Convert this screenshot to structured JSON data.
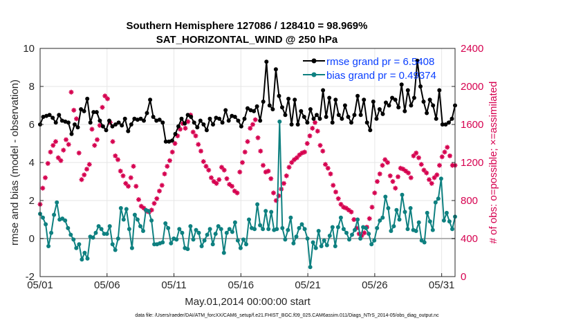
{
  "chart_data": {
    "type": "line",
    "title": "Southern Hemisphere 127086 / 128410 = 98.969%",
    "subtitle": "SAT_HORIZONTAL_WIND @ 250 hPa",
    "xlabel": "May.01,2014 00:00:00 start",
    "ylabel_left": "rmse and bias (model - observation)",
    "ylabel_right": "# of obs: o=possible; ×=assimilated",
    "x_tick_labels": [
      "05/01",
      "05/06",
      "05/11",
      "05/16",
      "05/21",
      "05/26",
      "05/31"
    ],
    "x_tick_days": [
      1,
      6,
      11,
      16,
      21,
      26,
      31
    ],
    "xlim": [
      1,
      32
    ],
    "ylim_left": [
      -2,
      10
    ],
    "y_ticks_left": [
      -2,
      0,
      2,
      4,
      6,
      8,
      10
    ],
    "ylim_right": [
      0,
      2400
    ],
    "y_ticks_right": [
      0,
      400,
      800,
      1200,
      1600,
      2000,
      2400
    ],
    "grid": true,
    "legend_position": "top-right",
    "footnote": "data file: /Users/raeder/DAI/ATM_forcXX/CAM6_setup/f.e21.FHIST_BGC.f09_025.CAM6assim.011/Diags_NTrS_2014-05/obs_diag_output.nc",
    "colors": {
      "rmse": "#000000",
      "bias": "#0e8080",
      "obs_count": "#d6004f",
      "zero_line": "#b0b0b0"
    },
    "series": [
      {
        "name": "rmse grand pr = 6.5408",
        "axis": "left",
        "values": [
          6.0,
          6.4,
          6.45,
          6.5,
          6.35,
          6.1,
          6.5,
          6.2,
          6.15,
          6.1,
          5.5,
          6.0,
          5.85,
          6.8,
          6.7,
          7.35,
          6.1,
          6.65,
          6.65,
          6.2,
          5.9,
          5.7,
          6.2,
          5.9,
          6.0,
          6.1,
          5.95,
          6.3,
          5.65,
          6.0,
          6.3,
          6.25,
          6.3,
          6.2,
          6.6,
          7.3,
          6.4,
          6.2,
          6.25,
          6.1,
          5.1,
          5.1,
          5.15,
          5.5,
          5.9,
          6.3,
          6.05,
          6.5,
          6.4,
          6.1,
          5.85,
          6.2,
          6.0,
          5.7,
          6.3,
          6.0,
          6.35,
          6.3,
          6.1,
          6.75,
          6.2,
          6.45,
          6.4,
          6.2,
          5.9,
          6.3,
          6.85,
          6.75,
          6.7,
          6.95,
          6.2,
          7.2,
          9.3,
          7.0,
          6.8,
          8.9,
          7.5,
          6.9,
          6.5,
          7.35,
          6.0,
          7.3,
          6.0,
          6.7,
          6.4,
          6.1,
          6.8,
          6.3,
          6.5,
          6.3,
          7.8,
          6.4,
          7.4,
          6.1,
          7.3,
          6.5,
          6.3,
          7.0,
          6.4,
          6.1,
          6.5,
          7.5,
          6.5,
          7.3,
          6.1,
          5.7,
          7.2,
          6.3,
          6.8,
          6.55,
          7.15,
          7.0,
          7.4,
          7.3,
          6.9,
          8.1,
          6.7,
          7.8,
          7.0,
          7.4,
          9.35,
          8.0,
          7.2,
          6.6,
          7.3,
          7.0,
          6.3,
          7.8,
          6.0,
          6.0,
          6.1,
          6.3,
          7.0
        ],
        "marker": "circle"
      },
      {
        "name": "bias grand pr = 0.49374",
        "axis": "left",
        "values": [
          1.3,
          1.1,
          0.75,
          -0.4,
          0.3,
          1.25,
          1.9,
          1.0,
          1.05,
          0.95,
          0.55,
          0.2,
          -0.05,
          -0.5,
          -0.3,
          -1.1,
          -0.75,
          -1.05,
          0.1,
          0.05,
          0.3,
          0.65,
          0.5,
          0.25,
          0.25,
          0.65,
          -0.3,
          -0.6,
          0.0,
          1.6,
          1.0,
          1.55,
          0.5,
          -0.5,
          1.25,
          1.0,
          0.65,
          0.4,
          1.5,
          1.45,
          0.95,
          -0.3,
          -0.3,
          -0.25,
          -0.2,
          0.8,
          0.55,
          -0.25,
          0.0,
          -0.05,
          0.5,
          0.3,
          -0.5,
          -0.55,
          0.65,
          -0.05,
          0.45,
          0.3,
          -0.4,
          -0.1,
          0.2,
          0.5,
          -0.3,
          0.25,
          0.65,
          0.5,
          -0.75,
          0.3,
          0.5,
          0.35,
          0.85,
          -0.1,
          -0.5,
          -0.05,
          -0.3,
          1.0,
          0.55,
          0.5,
          1.8,
          0.7,
          0.5,
          1.45,
          0.5,
          1.4,
          0.45,
          0.5,
          6.15,
          0.55,
          -0.05,
          0.45,
          1.1,
          -0.25,
          0.1,
          0.55,
          0.75,
          0.5,
          0.0,
          -1.5,
          -0.2,
          -0.5,
          0.4,
          -0.4,
          -0.1,
          -0.35,
          0.15,
          0.6,
          -0.4,
          0.6,
          1.1,
          0.5,
          0.3,
          -0.05,
          0.2,
          0.45,
          1.0,
          0.0,
          0.6,
          0.55,
          0.25,
          -0.3,
          -0.1,
          0.55,
          0.95,
          1.1,
          2.2,
          1.6,
          0.4,
          0.65,
          1.5,
          1.0,
          2.3,
          1.4,
          0.5,
          1.6,
          0.45,
          0.4,
          0.85,
          -0.1,
          -0.2,
          1.35,
          0.9,
          0.45,
          1.9,
          2.1,
          3.15,
          0.95,
          1.35,
          0.9,
          0.5,
          1.15
        ],
        "marker": "circle"
      },
      {
        "name": "obs possible / assimilated",
        "axis": "right",
        "values": [
          760,
          930,
          1040,
          1190,
          1310,
          1380,
          1420,
          1250,
          1220,
          1330,
          1440,
          1390,
          1940,
          1750,
          1660,
          1300,
          1020,
          1070,
          1130,
          1180,
          1550,
          1380,
          1440,
          1590,
          1780,
          1900,
          1870,
          1620,
          1420,
          1270,
          1230,
          1110,
          1060,
          980,
          950,
          1040,
          1160,
          950,
          810,
          740,
          720,
          690,
          680,
          700,
          770,
          820,
          900,
          960,
          1080,
          1160,
          1220,
          1310,
          1400,
          1480,
          1550,
          1610,
          1560,
          1630,
          1700,
          1520,
          1480,
          1390,
          1320,
          1210,
          1160,
          1120,
          1040,
          1000,
          980,
          1020,
          1150,
          1120,
          1030,
          970,
          950,
          900,
          880,
          1100,
          1200,
          1310,
          1420,
          1560,
          1600,
          1650,
          1460,
          1320,
          1170,
          1100,
          1110,
          1030,
          880,
          800,
          850,
          920,
          980,
          1060,
          1150,
          1200,
          1230,
          1250,
          1280,
          1300,
          1310,
          1400,
          1480,
          1560,
          1620,
          1530,
          1380,
          1320,
          1180,
          1140,
          1080,
          960,
          890,
          820,
          760,
          730,
          720,
          700,
          680,
          600,
          510,
          450,
          430,
          460,
          520,
          610,
          730,
          880,
          1000,
          1080,
          1170,
          1230,
          1200,
          1060,
          1000,
          930,
          1050,
          1140,
          1130,
          1110,
          1090,
          1040,
          1270,
          1300,
          1250,
          1180,
          1120,
          1090,
          1020,
          980,
          1040,
          1070,
          1170,
          1260,
          1310,
          1360,
          1270,
          1170,
          1170
        ],
        "marker": "asterisk"
      }
    ]
  }
}
